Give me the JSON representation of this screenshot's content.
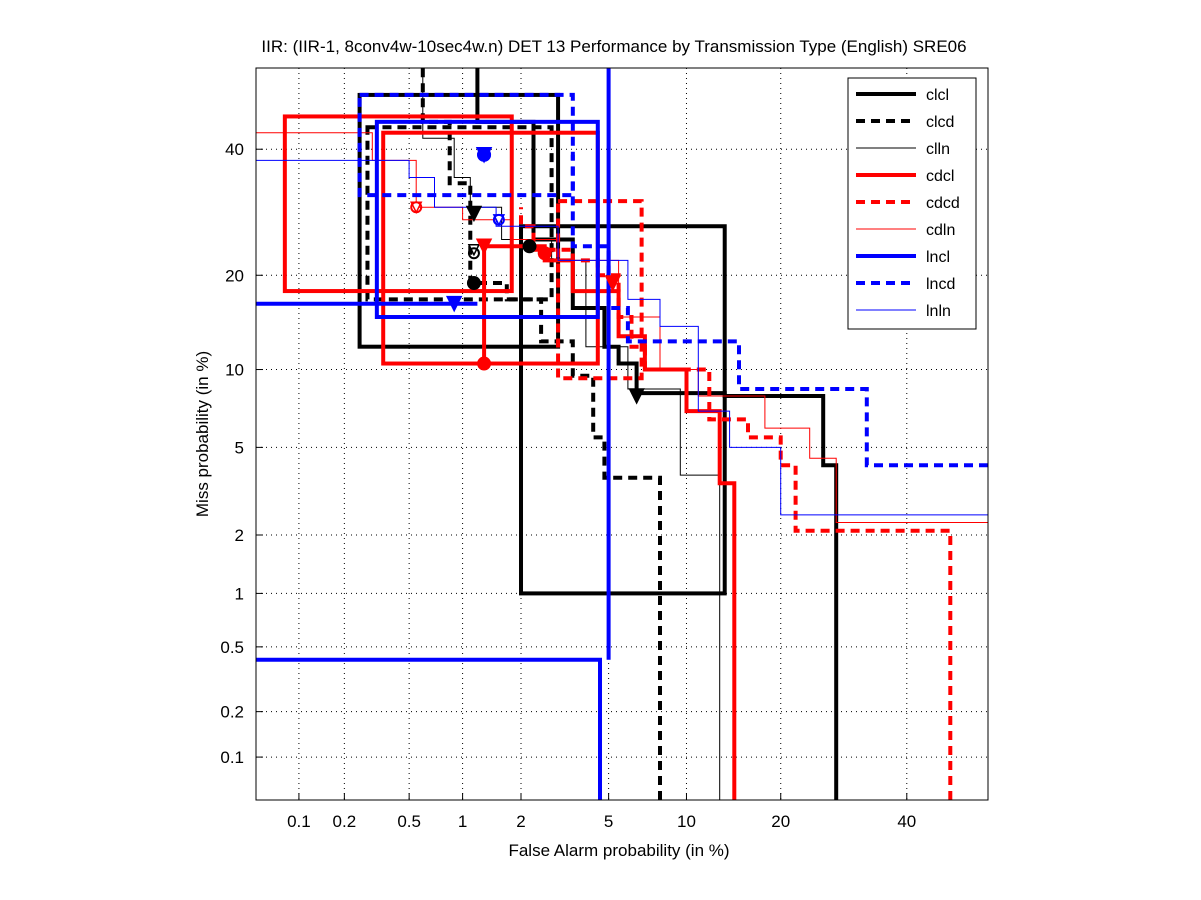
{
  "chart_data": {
    "type": "line",
    "plot_kind": "DET (normal deviate scale)",
    "title": "IIR: (IIR-1, 8conv4w-10sec4w.n) DET 13 Performance by Transmission Type (English) SRE06",
    "xlabel": "False Alarm probability (in %)",
    "ylabel": "Miss probability (in %)",
    "xlim": [
      0.05,
      55
    ],
    "ylim": [
      0.05,
      55
    ],
    "x_ticks": [
      0.1,
      0.2,
      0.5,
      1,
      2,
      5,
      10,
      20,
      40
    ],
    "x_tick_labels": [
      "0.1",
      "0.2",
      "0.5",
      "1",
      "2",
      "5",
      "10",
      "20",
      "40"
    ],
    "y_ticks": [
      0.1,
      0.2,
      0.5,
      1,
      2,
      5,
      10,
      20,
      40
    ],
    "y_tick_labels": [
      "0.1",
      "0.2",
      "0.5",
      "1",
      "2",
      "5",
      "10",
      "20",
      "40"
    ],
    "grid": true,
    "legend_position": "top-right",
    "series": [
      {
        "name": "clcl",
        "color": "#000000",
        "style": "thick-solid",
        "points": [
          [
            28,
            0.05
          ],
          [
            28,
            4.2
          ],
          [
            26,
            4.2
          ],
          [
            26,
            8
          ],
          [
            13.5,
            8
          ],
          [
            13.5,
            8.2
          ],
          [
            6.5,
            8.2
          ],
          [
            6.5,
            10.5
          ],
          [
            5.5,
            10.5
          ],
          [
            5.5,
            12
          ],
          [
            4.8,
            12
          ],
          [
            4.8,
            16
          ],
          [
            3.5,
            16
          ],
          [
            3.5,
            25
          ],
          [
            2.3,
            25
          ],
          [
            2.3,
            45
          ],
          [
            1.2,
            45
          ],
          [
            1.2,
            55
          ]
        ],
        "ci_box": {
          "x": [
            2.0,
            13.5
          ],
          "y": [
            1.0,
            27
          ]
        },
        "ci_box2": {
          "x": [
            0.25,
            3.0
          ],
          "y": [
            12,
            50
          ]
        },
        "min_dcf": [
          6.5,
          8.0
        ],
        "eer": [
          2.2,
          24
        ]
      },
      {
        "name": "clcd",
        "color": "#000000",
        "style": "thick-dashed",
        "points": [
          [
            8,
            0.05
          ],
          [
            8,
            3.7
          ],
          [
            4.8,
            3.7
          ],
          [
            4.8,
            5.5
          ],
          [
            4.3,
            5.5
          ],
          [
            4.3,
            9.5
          ],
          [
            3.5,
            9.5
          ],
          [
            3.5,
            12.5
          ],
          [
            2.5,
            12.5
          ],
          [
            2.5,
            17
          ],
          [
            1.7,
            17
          ],
          [
            1.7,
            19
          ],
          [
            1.1,
            19
          ],
          [
            1.1,
            34
          ],
          [
            0.85,
            34
          ],
          [
            0.85,
            45
          ],
          [
            0.6,
            45
          ],
          [
            0.6,
            55
          ]
        ],
        "ci_box": {
          "x": [
            0.28,
            2.8
          ],
          "y": [
            17,
            44
          ]
        },
        "min_dcf": [
          1.15,
          29
        ],
        "eer": [
          1.15,
          19
        ]
      },
      {
        "name": "clln",
        "color": "#000000",
        "style": "thin-solid",
        "points": [
          [
            13,
            0.05
          ],
          [
            13,
            3.8
          ],
          [
            9.5,
            3.8
          ],
          [
            9.5,
            8.5
          ],
          [
            6,
            8.5
          ],
          [
            6,
            12
          ],
          [
            4,
            12
          ],
          [
            4,
            22
          ],
          [
            2.8,
            22
          ],
          [
            2.8,
            25
          ],
          [
            1.6,
            25
          ],
          [
            1.6,
            30
          ],
          [
            1.1,
            30
          ],
          [
            1.1,
            35
          ],
          [
            0.9,
            35
          ],
          [
            0.9,
            42
          ],
          [
            0.6,
            42
          ],
          [
            0.6,
            55
          ]
        ],
        "min_dcf": [
          1.15,
          23.5
        ],
        "eer": [
          1.15,
          23
        ]
      },
      {
        "name": "cdcl",
        "color": "#ff0000",
        "style": "thick-solid",
        "points": [
          [
            14.5,
            0.05
          ],
          [
            14.5,
            3.5
          ],
          [
            13,
            3.5
          ],
          [
            13,
            7
          ],
          [
            10,
            7
          ],
          [
            10,
            10
          ],
          [
            7,
            10
          ],
          [
            7,
            13
          ],
          [
            5.5,
            13
          ],
          [
            5.5,
            18
          ],
          [
            3.5,
            18
          ],
          [
            3.5,
            22
          ],
          [
            2.6,
            22
          ],
          [
            2.6,
            24
          ],
          [
            1.3,
            24
          ],
          [
            1.3,
            10.5
          ]
        ],
        "ci_box": {
          "x": [
            0.08,
            1.8
          ],
          "y": [
            18,
            46
          ]
        },
        "ci_box2": {
          "x": [
            0.35,
            4.5
          ],
          "y": [
            10.5,
            43
          ]
        },
        "min_dcf": [
          1.3,
          24
        ],
        "eer": [
          1.3,
          10.5
        ]
      },
      {
        "name": "cdcd",
        "color": "#ff0000",
        "style": "thick-dashed",
        "points": [
          [
            48,
            0.05
          ],
          [
            48,
            2.1
          ],
          [
            22,
            2.1
          ],
          [
            22,
            4.2
          ],
          [
            20,
            4.2
          ],
          [
            20,
            5.5
          ],
          [
            16,
            5.5
          ],
          [
            16,
            6.5
          ],
          [
            12,
            6.5
          ],
          [
            12,
            10
          ],
          [
            7,
            10
          ],
          [
            7,
            12
          ],
          [
            6.2,
            12
          ],
          [
            6.2,
            15
          ],
          [
            5.5,
            15
          ],
          [
            5.5,
            20
          ],
          [
            4.5,
            20
          ],
          [
            4.5,
            22
          ],
          [
            3.5,
            22
          ],
          [
            3.5,
            23.5
          ],
          [
            2.3,
            23.5
          ],
          [
            2.3,
            27
          ],
          [
            2,
            27
          ],
          [
            2,
            30
          ]
        ],
        "ci_box": {
          "x": [
            3.0,
            6.8
          ],
          "y": [
            9.3,
            31
          ]
        },
        "min_dcf": [
          5.2,
          19
        ],
        "eer": [
          2.6,
          23
        ]
      },
      {
        "name": "cdln",
        "color": "#ff0000",
        "style": "thin-solid",
        "points": [
          [
            55,
            2.3
          ],
          [
            28,
            2.3
          ],
          [
            28,
            4.5
          ],
          [
            24,
            4.5
          ],
          [
            24,
            6
          ],
          [
            18,
            6
          ],
          [
            18,
            8
          ],
          [
            11,
            8
          ],
          [
            11,
            10
          ],
          [
            8,
            10
          ],
          [
            8,
            15
          ],
          [
            5.5,
            15
          ],
          [
            5.5,
            22
          ],
          [
            3,
            22
          ],
          [
            3,
            25
          ],
          [
            1.8,
            25
          ],
          [
            1.8,
            28
          ],
          [
            1,
            28
          ],
          [
            1,
            30
          ],
          [
            0.55,
            30
          ],
          [
            0.55,
            38
          ],
          [
            0.3,
            38
          ],
          [
            0.3,
            43
          ],
          [
            0.05,
            43
          ]
        ],
        "min_dcf": [
          0.55,
          30
        ],
        "eer": [
          0.55,
          30
        ]
      },
      {
        "name": "lncl",
        "color": "#0000ff",
        "style": "thick-solid",
        "points": [
          [
            4.6,
            0.05
          ],
          [
            4.6,
            0.42
          ],
          [
            0.05,
            0.42
          ]
        ],
        "extra_lines": [
          [
            [
              5,
              0.42
            ],
            [
              5,
              55
            ]
          ],
          [
            [
              0.05,
              16.5
            ],
            [
              1.2,
              16.5
            ]
          ]
        ],
        "ci_box": {
          "x": [
            0.32,
            4.5
          ],
          "y": [
            15,
            45
          ]
        },
        "min_dcf": [
          0.9,
          16.5
        ],
        "eer": [
          1.3,
          39
        ]
      },
      {
        "name": "lncd",
        "color": "#0000ff",
        "style": "thick-dashed",
        "points": [
          [
            55,
            4.2
          ],
          [
            33,
            4.2
          ],
          [
            33,
            8.5
          ],
          [
            15,
            8.5
          ],
          [
            15,
            12.5
          ],
          [
            6,
            12.5
          ],
          [
            6,
            16
          ],
          [
            5,
            16
          ],
          [
            5,
            24
          ],
          [
            3.5,
            24
          ],
          [
            3.5,
            39
          ]
        ],
        "ci_box": {
          "x": [
            0.25,
            3.5
          ],
          "y": [
            32,
            50
          ]
        },
        "min_dcf": [
          1.3,
          39
        ],
        "eer": [
          1.3,
          39
        ]
      },
      {
        "name": "lnln",
        "color": "#0000ff",
        "style": "thin-solid",
        "points": [
          [
            55,
            2.5
          ],
          [
            20,
            2.5
          ],
          [
            20,
            5
          ],
          [
            14,
            5
          ],
          [
            14,
            7
          ],
          [
            11,
            7
          ],
          [
            11,
            14
          ],
          [
            8,
            14
          ],
          [
            8,
            17
          ],
          [
            6,
            17
          ],
          [
            6,
            22
          ],
          [
            3,
            22
          ],
          [
            3,
            27
          ],
          [
            1.5,
            27
          ],
          [
            1.5,
            30
          ],
          [
            0.7,
            30
          ],
          [
            0.7,
            35
          ],
          [
            0.5,
            35
          ],
          [
            0.5,
            38
          ],
          [
            0.05,
            38
          ]
        ],
        "min_dcf": [
          1.55,
          28
        ],
        "eer": [
          1.55,
          28
        ]
      }
    ]
  }
}
